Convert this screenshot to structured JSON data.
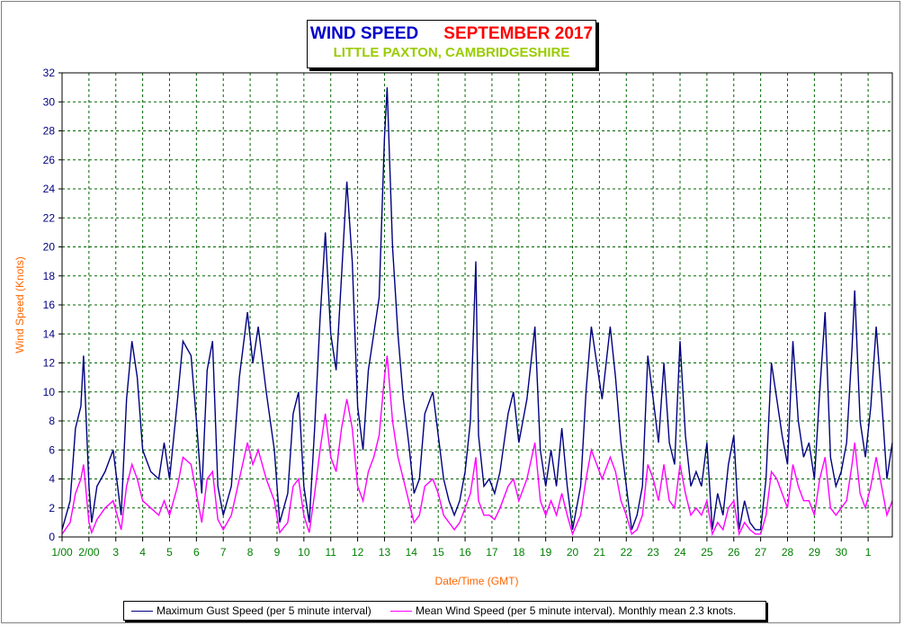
{
  "title": {
    "part1": "WIND SPEED",
    "part2": "SEPTEMBER 2017",
    "subtitle": "LITTLE PAXTON, CAMBRIDGESHIRE"
  },
  "legend": {
    "gust": "Maximum Gust Speed (per 5 minute interval)",
    "mean": "Mean Wind Speed (per 5 minute interval). Monthly mean 2.3 knots."
  },
  "colors": {
    "gust": "#000080",
    "mean": "#ff00ff",
    "grid": "#006600",
    "x_tick": "#008000",
    "y_tick": "#000080",
    "axis_label": "#ff6600",
    "title_primary": "#0000cc",
    "title_secondary": "#ff0000",
    "subtitle": "#99cc00"
  },
  "chart_data": {
    "type": "line",
    "xlabel": "Date/Time (GMT)",
    "ylabel": "Wind Speed (Knots)",
    "ylim": [
      0,
      32
    ],
    "y_ticks": [
      "0",
      "2",
      "4",
      "6",
      "8",
      "10",
      "12",
      "14",
      "16",
      "18",
      "20",
      "22",
      "24",
      "26",
      "28",
      "30",
      "32"
    ],
    "x_ticks": [
      "1/00",
      "2/00",
      "3",
      "4",
      "5",
      "6",
      "7",
      "8",
      "9",
      "10",
      "11",
      "12",
      "13",
      "14",
      "15",
      "16",
      "17",
      "18",
      "19",
      "20",
      "21",
      "22",
      "23",
      "24",
      "25",
      "26",
      "27",
      "28",
      "29",
      "30",
      "1"
    ],
    "x_unit": "day of month",
    "xlim": [
      1,
      31.9
    ],
    "grid": true,
    "legend_position": "bottom",
    "series": [
      {
        "key": "gust",
        "name": "Maximum Gust Speed (per 5 minute interval)",
        "points": [
          [
            1.0,
            0.5
          ],
          [
            1.3,
            2.5
          ],
          [
            1.5,
            7.5
          ],
          [
            1.7,
            9.0
          ],
          [
            1.8,
            12.5
          ],
          [
            2.0,
            3.5
          ],
          [
            2.1,
            1.0
          ],
          [
            2.3,
            3.5
          ],
          [
            2.6,
            4.5
          ],
          [
            2.9,
            6.0
          ],
          [
            3.2,
            1.5
          ],
          [
            3.4,
            9.5
          ],
          [
            3.6,
            13.5
          ],
          [
            3.8,
            11.0
          ],
          [
            4.0,
            6.0
          ],
          [
            4.3,
            4.5
          ],
          [
            4.6,
            4.0
          ],
          [
            4.8,
            6.5
          ],
          [
            5.0,
            4.0
          ],
          [
            5.3,
            9.5
          ],
          [
            5.5,
            13.5
          ],
          [
            5.8,
            12.5
          ],
          [
            6.0,
            8.0
          ],
          [
            6.2,
            3.0
          ],
          [
            6.4,
            11.5
          ],
          [
            6.6,
            13.5
          ],
          [
            6.8,
            3.5
          ],
          [
            7.0,
            1.5
          ],
          [
            7.3,
            3.5
          ],
          [
            7.6,
            11.0
          ],
          [
            7.9,
            15.5
          ],
          [
            8.1,
            12.0
          ],
          [
            8.3,
            14.5
          ],
          [
            8.6,
            10.0
          ],
          [
            8.9,
            6.0
          ],
          [
            9.1,
            1.0
          ],
          [
            9.4,
            3.0
          ],
          [
            9.6,
            8.5
          ],
          [
            9.8,
            10.0
          ],
          [
            10.0,
            3.5
          ],
          [
            10.2,
            1.0
          ],
          [
            10.4,
            7.5
          ],
          [
            10.6,
            15.0
          ],
          [
            10.8,
            21.0
          ],
          [
            11.0,
            14.0
          ],
          [
            11.2,
            11.5
          ],
          [
            11.4,
            18.0
          ],
          [
            11.6,
            24.5
          ],
          [
            11.8,
            19.0
          ],
          [
            12.0,
            9.0
          ],
          [
            12.2,
            6.0
          ],
          [
            12.4,
            11.5
          ],
          [
            12.6,
            14.0
          ],
          [
            12.8,
            16.5
          ],
          [
            13.0,
            27.5
          ],
          [
            13.1,
            31.0
          ],
          [
            13.3,
            20.0
          ],
          [
            13.5,
            14.0
          ],
          [
            13.7,
            9.5
          ],
          [
            13.9,
            6.5
          ],
          [
            14.1,
            3.0
          ],
          [
            14.3,
            4.0
          ],
          [
            14.5,
            8.5
          ],
          [
            14.8,
            10.0
          ],
          [
            15.0,
            7.0
          ],
          [
            15.2,
            4.0
          ],
          [
            15.4,
            2.5
          ],
          [
            15.6,
            1.5
          ],
          [
            15.8,
            2.5
          ],
          [
            16.0,
            4.5
          ],
          [
            16.2,
            8.0
          ],
          [
            16.4,
            19.0
          ],
          [
            16.5,
            7.0
          ],
          [
            16.7,
            3.5
          ],
          [
            16.9,
            4.0
          ],
          [
            17.1,
            3.0
          ],
          [
            17.3,
            4.5
          ],
          [
            17.6,
            8.5
          ],
          [
            17.8,
            10.0
          ],
          [
            18.0,
            6.5
          ],
          [
            18.3,
            9.5
          ],
          [
            18.6,
            14.5
          ],
          [
            18.8,
            6.0
          ],
          [
            19.0,
            3.5
          ],
          [
            19.2,
            6.0
          ],
          [
            19.4,
            3.5
          ],
          [
            19.6,
            7.5
          ],
          [
            19.8,
            3.5
          ],
          [
            20.0,
            0.5
          ],
          [
            20.3,
            3.5
          ],
          [
            20.5,
            10.0
          ],
          [
            20.7,
            14.5
          ],
          [
            20.9,
            12.0
          ],
          [
            21.1,
            9.5
          ],
          [
            21.4,
            14.5
          ],
          [
            21.6,
            11.0
          ],
          [
            21.8,
            6.5
          ],
          [
            22.0,
            3.5
          ],
          [
            22.2,
            0.5
          ],
          [
            22.4,
            1.5
          ],
          [
            22.6,
            3.5
          ],
          [
            22.8,
            12.5
          ],
          [
            23.0,
            9.5
          ],
          [
            23.2,
            6.5
          ],
          [
            23.4,
            12.0
          ],
          [
            23.6,
            6.5
          ],
          [
            23.8,
            5.0
          ],
          [
            24.0,
            13.5
          ],
          [
            24.2,
            7.0
          ],
          [
            24.4,
            3.5
          ],
          [
            24.6,
            4.5
          ],
          [
            24.8,
            3.5
          ],
          [
            25.0,
            6.5
          ],
          [
            25.2,
            0.5
          ],
          [
            25.4,
            3.0
          ],
          [
            25.6,
            1.5
          ],
          [
            25.8,
            5.0
          ],
          [
            26.0,
            7.0
          ],
          [
            26.2,
            0.5
          ],
          [
            26.4,
            2.5
          ],
          [
            26.6,
            1.0
          ],
          [
            26.8,
            0.5
          ],
          [
            27.0,
            0.5
          ],
          [
            27.2,
            4.0
          ],
          [
            27.4,
            12.0
          ],
          [
            27.6,
            9.5
          ],
          [
            27.8,
            7.0
          ],
          [
            28.0,
            5.0
          ],
          [
            28.2,
            13.5
          ],
          [
            28.4,
            8.0
          ],
          [
            28.6,
            5.5
          ],
          [
            28.8,
            6.5
          ],
          [
            29.0,
            4.0
          ],
          [
            29.2,
            10.0
          ],
          [
            29.4,
            15.5
          ],
          [
            29.6,
            5.5
          ],
          [
            29.8,
            3.5
          ],
          [
            30.0,
            4.5
          ],
          [
            30.2,
            6.5
          ],
          [
            30.4,
            13.0
          ],
          [
            30.5,
            17.0
          ],
          [
            30.7,
            8.0
          ],
          [
            30.9,
            5.5
          ],
          [
            31.1,
            9.0
          ],
          [
            31.3,
            14.5
          ],
          [
            31.5,
            9.5
          ],
          [
            31.7,
            4.0
          ],
          [
            31.9,
            6.5
          ]
        ]
      },
      {
        "key": "mean",
        "name": "Mean Wind Speed (per 5 minute interval). Monthly mean 2.3 knots.",
        "points": [
          [
            1.0,
            0.2
          ],
          [
            1.3,
            1.0
          ],
          [
            1.5,
            3.0
          ],
          [
            1.7,
            4.0
          ],
          [
            1.8,
            5.0
          ],
          [
            2.0,
            1.0
          ],
          [
            2.1,
            0.3
          ],
          [
            2.3,
            1.2
          ],
          [
            2.6,
            2.0
          ],
          [
            2.9,
            2.5
          ],
          [
            3.2,
            0.5
          ],
          [
            3.4,
            3.5
          ],
          [
            3.6,
            5.0
          ],
          [
            3.8,
            4.0
          ],
          [
            4.0,
            2.5
          ],
          [
            4.3,
            2.0
          ],
          [
            4.6,
            1.5
          ],
          [
            4.8,
            2.5
          ],
          [
            5.0,
            1.5
          ],
          [
            5.3,
            3.5
          ],
          [
            5.5,
            5.5
          ],
          [
            5.8,
            5.0
          ],
          [
            6.0,
            3.0
          ],
          [
            6.2,
            1.0
          ],
          [
            6.4,
            4.0
          ],
          [
            6.6,
            4.5
          ],
          [
            6.8,
            1.2
          ],
          [
            7.0,
            0.5
          ],
          [
            7.3,
            1.5
          ],
          [
            7.6,
            4.0
          ],
          [
            7.9,
            6.5
          ],
          [
            8.1,
            5.0
          ],
          [
            8.3,
            6.0
          ],
          [
            8.6,
            4.0
          ],
          [
            8.9,
            2.5
          ],
          [
            9.1,
            0.3
          ],
          [
            9.4,
            1.0
          ],
          [
            9.6,
            3.5
          ],
          [
            9.8,
            4.0
          ],
          [
            10.0,
            1.5
          ],
          [
            10.2,
            0.3
          ],
          [
            10.4,
            3.0
          ],
          [
            10.6,
            6.0
          ],
          [
            10.8,
            8.5
          ],
          [
            11.0,
            5.5
          ],
          [
            11.2,
            4.5
          ],
          [
            11.4,
            7.5
          ],
          [
            11.6,
            9.5
          ],
          [
            11.8,
            7.5
          ],
          [
            12.0,
            3.5
          ],
          [
            12.2,
            2.5
          ],
          [
            12.4,
            4.5
          ],
          [
            12.6,
            5.5
          ],
          [
            12.8,
            7.0
          ],
          [
            13.0,
            11.0
          ],
          [
            13.1,
            12.5
          ],
          [
            13.3,
            8.0
          ],
          [
            13.5,
            5.5
          ],
          [
            13.7,
            4.0
          ],
          [
            13.9,
            2.5
          ],
          [
            14.1,
            1.0
          ],
          [
            14.3,
            1.5
          ],
          [
            14.5,
            3.5
          ],
          [
            14.8,
            4.0
          ],
          [
            15.0,
            3.0
          ],
          [
            15.2,
            1.5
          ],
          [
            15.4,
            1.0
          ],
          [
            15.6,
            0.5
          ],
          [
            15.8,
            1.0
          ],
          [
            16.0,
            2.0
          ],
          [
            16.2,
            3.0
          ],
          [
            16.4,
            5.5
          ],
          [
            16.5,
            2.5
          ],
          [
            16.7,
            1.5
          ],
          [
            16.9,
            1.5
          ],
          [
            17.1,
            1.2
          ],
          [
            17.3,
            2.0
          ],
          [
            17.6,
            3.5
          ],
          [
            17.8,
            4.0
          ],
          [
            18.0,
            2.5
          ],
          [
            18.3,
            4.0
          ],
          [
            18.6,
            6.5
          ],
          [
            18.8,
            2.5
          ],
          [
            19.0,
            1.5
          ],
          [
            19.2,
            2.5
          ],
          [
            19.4,
            1.5
          ],
          [
            19.6,
            3.0
          ],
          [
            19.8,
            1.5
          ],
          [
            20.0,
            0.2
          ],
          [
            20.3,
            1.5
          ],
          [
            20.5,
            4.0
          ],
          [
            20.7,
            6.0
          ],
          [
            20.9,
            5.0
          ],
          [
            21.1,
            4.0
          ],
          [
            21.4,
            5.5
          ],
          [
            21.6,
            4.5
          ],
          [
            21.8,
            2.5
          ],
          [
            22.0,
            1.5
          ],
          [
            22.2,
            0.2
          ],
          [
            22.4,
            0.5
          ],
          [
            22.6,
            1.5
          ],
          [
            22.8,
            5.0
          ],
          [
            23.0,
            4.0
          ],
          [
            23.2,
            2.5
          ],
          [
            23.4,
            5.0
          ],
          [
            23.6,
            2.5
          ],
          [
            23.8,
            2.0
          ],
          [
            24.0,
            5.0
          ],
          [
            24.2,
            3.0
          ],
          [
            24.4,
            1.5
          ],
          [
            24.6,
            2.0
          ],
          [
            24.8,
            1.5
          ],
          [
            25.0,
            2.5
          ],
          [
            25.2,
            0.2
          ],
          [
            25.4,
            1.0
          ],
          [
            25.6,
            0.5
          ],
          [
            25.8,
            2.0
          ],
          [
            26.0,
            2.5
          ],
          [
            26.2,
            0.2
          ],
          [
            26.4,
            1.0
          ],
          [
            26.6,
            0.5
          ],
          [
            26.8,
            0.2
          ],
          [
            27.0,
            0.2
          ],
          [
            27.2,
            1.5
          ],
          [
            27.4,
            4.5
          ],
          [
            27.6,
            4.0
          ],
          [
            27.8,
            3.0
          ],
          [
            28.0,
            2.0
          ],
          [
            28.2,
            5.0
          ],
          [
            28.4,
            3.5
          ],
          [
            28.6,
            2.5
          ],
          [
            28.8,
            2.5
          ],
          [
            29.0,
            1.5
          ],
          [
            29.2,
            4.0
          ],
          [
            29.4,
            5.5
          ],
          [
            29.6,
            2.0
          ],
          [
            29.8,
            1.5
          ],
          [
            30.0,
            2.0
          ],
          [
            30.2,
            2.5
          ],
          [
            30.4,
            5.0
          ],
          [
            30.5,
            6.5
          ],
          [
            30.7,
            3.0
          ],
          [
            30.9,
            2.0
          ],
          [
            31.1,
            3.5
          ],
          [
            31.3,
            5.5
          ],
          [
            31.5,
            3.5
          ],
          [
            31.7,
            1.5
          ],
          [
            31.9,
            2.5
          ]
        ]
      }
    ]
  }
}
